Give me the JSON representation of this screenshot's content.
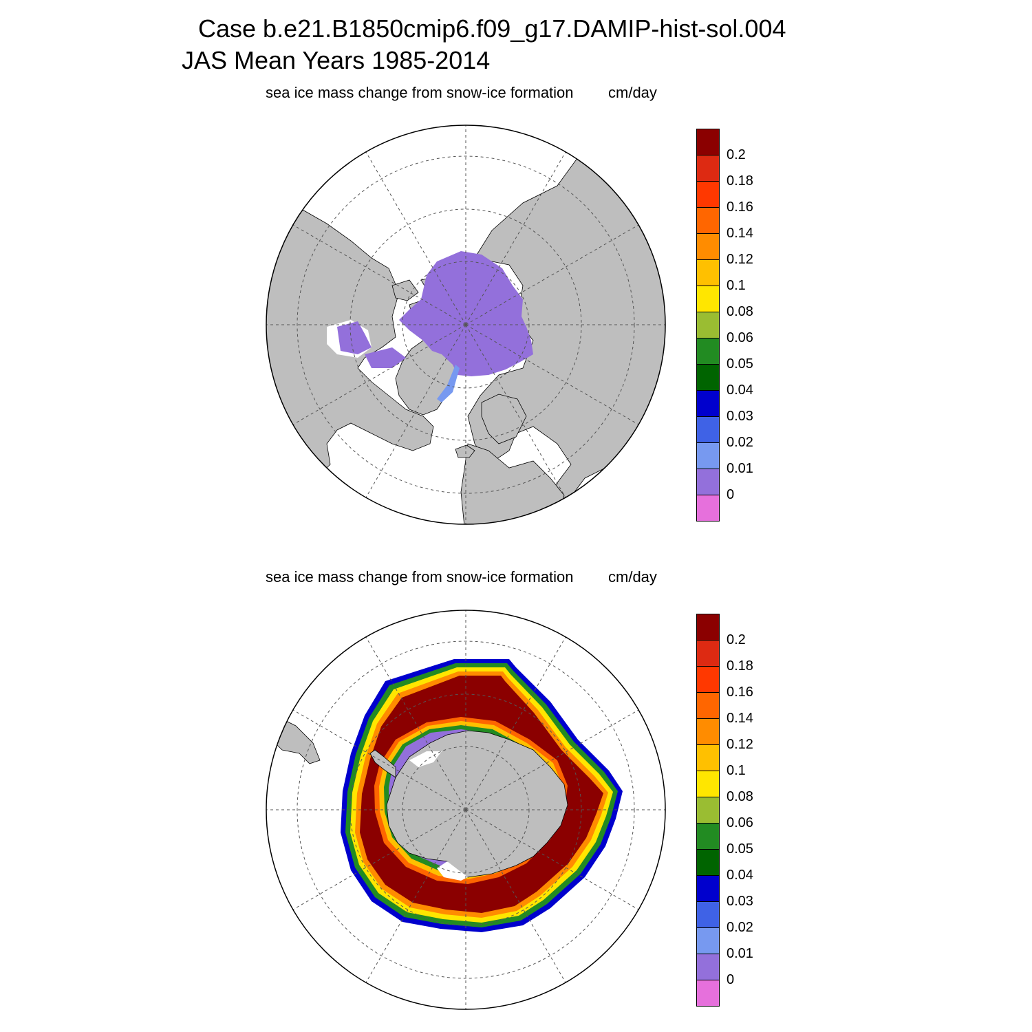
{
  "figure": {
    "title_line1": "Case b.e21.B1850cmip6.f09_g17.DAMIP-hist-sol.004",
    "title_line2": "JAS Mean   Years 1985-2014"
  },
  "panels": [
    {
      "hemisphere": "north",
      "variable_label": "sea ice mass change from snow-ice formation",
      "units_label": "cm/day"
    },
    {
      "hemisphere": "south",
      "variable_label": "sea ice mass change from snow-ice formation",
      "units_label": "cm/day"
    }
  ],
  "colorbar": {
    "labels": [
      "0.2",
      "0.18",
      "0.16",
      "0.14",
      "0.12",
      "0.1",
      "0.08",
      "0.06",
      "0.05",
      "0.04",
      "0.03",
      "0.02",
      "0.01",
      "0"
    ],
    "colors_top_to_bottom": [
      "#8B0000",
      "#DD2A12",
      "#FF3800",
      "#FF6600",
      "#FF8C00",
      "#FFC000",
      "#FFE600",
      "#9ABD32",
      "#228B22",
      "#006400",
      "#0000CD",
      "#3F62E6",
      "#7799F0",
      "#9370DB",
      "#E670DC"
    ]
  },
  "map_colors": {
    "land": "#BEBEBE",
    "ocean": "#FFFFFF",
    "coast": "#000000"
  }
}
